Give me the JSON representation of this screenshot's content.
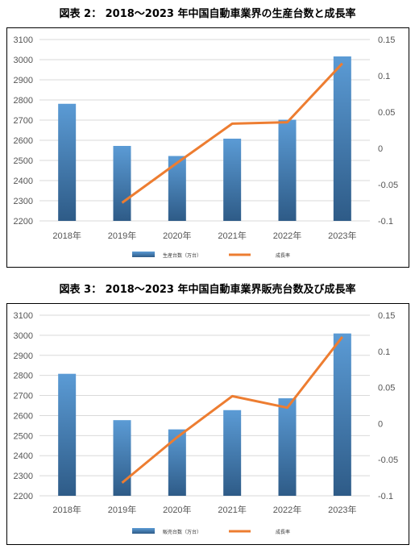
{
  "figures": [
    {
      "title": "図表 2： 2018〜2023 年中国自動車業界の生産台数と成長率",
      "legend": {
        "bar": "生産台数（万台）",
        "line": "成長率"
      }
    },
    {
      "title": "図表 3： 2018〜2023 年中国自動車業界販売台数及び成長率",
      "legend": {
        "bar": "販売台数（万台）",
        "line": "成長率"
      }
    }
  ],
  "colors": {
    "bar_top": "#5b9bd5",
    "bar_bottom": "#2e5b87",
    "line": "#ed7d31",
    "grid": "#d9d9d9",
    "axis_text": "#555555"
  },
  "chart_data": [
    {
      "type": "bar",
      "title": "図表 2： 2018〜2023 年中国自動車業界の生産台数と成長率",
      "categories": [
        "2018年",
        "2019年",
        "2020年",
        "2021年",
        "2022年",
        "2023年"
      ],
      "series": [
        {
          "name": "生産台数（万台）",
          "type": "bar",
          "axis": "left",
          "values": [
            2781,
            2572,
            2522,
            2608,
            2702,
            3016
          ]
        },
        {
          "name": "成長率",
          "type": "line",
          "axis": "right",
          "values": [
            null,
            -0.075,
            -0.02,
            0.034,
            0.036,
            0.117
          ]
        }
      ],
      "ylim": [
        2200,
        3100
      ],
      "yticks": [
        2200,
        2300,
        2400,
        2500,
        2600,
        2700,
        2800,
        2900,
        3000,
        3100
      ],
      "y2lim": [
        -0.1,
        0.15
      ],
      "y2ticks": [
        "-0.1",
        "-0.05",
        "0",
        "0.05",
        "0.1",
        "0.15"
      ],
      "grid": true,
      "legend_position": "bottom"
    },
    {
      "type": "bar",
      "title": "図表 3： 2018〜2023 年中国自動車業界販売台数及び成長率",
      "categories": [
        "2018年",
        "2019年",
        "2020年",
        "2021年",
        "2022年",
        "2023年"
      ],
      "series": [
        {
          "name": "販売台数（万台）",
          "type": "bar",
          "axis": "left",
          "values": [
            2808,
            2577,
            2531,
            2627,
            2686,
            3009
          ]
        },
        {
          "name": "成長率",
          "type": "line",
          "axis": "right",
          "values": [
            null,
            -0.082,
            -0.019,
            0.038,
            0.022,
            0.12
          ]
        }
      ],
      "ylim": [
        2200,
        3100
      ],
      "yticks": [
        2200,
        2300,
        2400,
        2500,
        2600,
        2700,
        2800,
        2900,
        3000,
        3100
      ],
      "y2lim": [
        -0.1,
        0.15
      ],
      "y2ticks": [
        "-0.1",
        "-0.05",
        "0",
        "0.05",
        "0.1",
        "0.15"
      ],
      "grid": true,
      "legend_position": "bottom"
    }
  ]
}
